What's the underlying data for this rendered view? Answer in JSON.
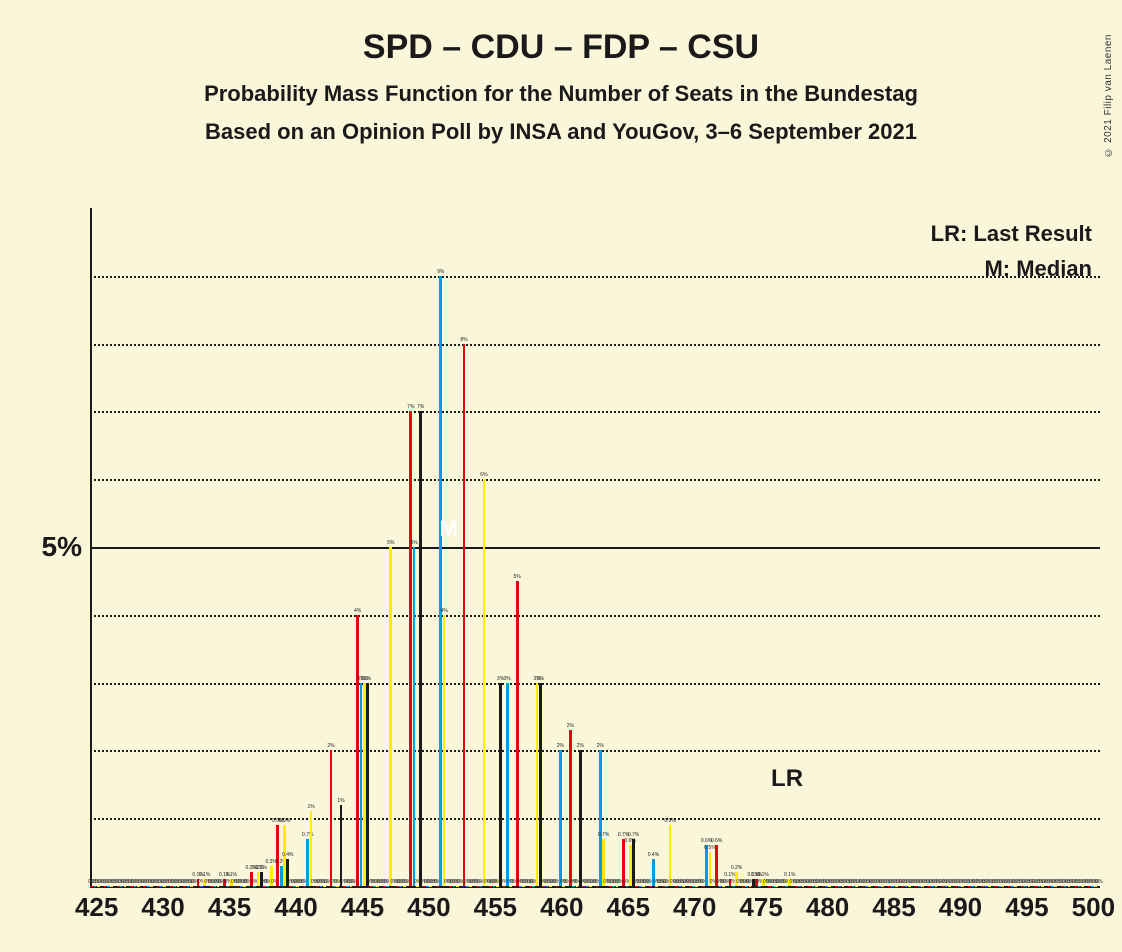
{
  "title": "SPD – CDU – FDP – CSU",
  "subtitle1": "Probability Mass Function for the Number of Seats in the Bundestag",
  "subtitle2": "Based on an Opinion Poll by INSA and YouGov, 3–6 September 2021",
  "attribution": "© 2021 Filip van Laenen",
  "legend": {
    "lr": "LR: Last Result",
    "m": "M: Median"
  },
  "chart": {
    "type": "bar",
    "background_color": "#faf6da",
    "text_color": "#1a1a1a",
    "grid_color": "#1a1a1a",
    "title_fontsize": 34,
    "subtitle_fontsize": 22,
    "axis_label_fontsize": 28,
    "x_tick_fontsize": 26,
    "bar_label_fontsize": 5,
    "y_axis": {
      "ymax_percent": 10,
      "major_tick": {
        "value": 5,
        "label": "5%"
      },
      "minor_grid_step": 1,
      "minor_grid_style": "dotted",
      "major_grid_style": "solid"
    },
    "x_axis": {
      "min": 425,
      "max": 500,
      "label_step": 5,
      "labels": [
        "425",
        "430",
        "435",
        "440",
        "445",
        "450",
        "455",
        "460",
        "465",
        "470",
        "475",
        "480",
        "485",
        "490",
        "495",
        "500"
      ]
    },
    "series_colors": {
      "red": "#e30613",
      "blue": "#009ee0",
      "yellow": "#ffed00",
      "black": "#1a1a1a"
    },
    "series_order": [
      "red",
      "blue",
      "yellow",
      "black"
    ],
    "categories": [
      425,
      426,
      427,
      428,
      429,
      430,
      431,
      432,
      433,
      434,
      435,
      436,
      437,
      438,
      439,
      440,
      441,
      442,
      443,
      444,
      445,
      446,
      447,
      448,
      449,
      450,
      451,
      452,
      453,
      454,
      455,
      456,
      457,
      458,
      459,
      460,
      461,
      462,
      463,
      464,
      465,
      466,
      467,
      468,
      469,
      470,
      471,
      472,
      473,
      474,
      475,
      476,
      477,
      478,
      479,
      480,
      481,
      482,
      483,
      484,
      485,
      486,
      487,
      488,
      489,
      490,
      491,
      492,
      493,
      494,
      495,
      496,
      497,
      498,
      499,
      500
    ],
    "data": {
      "425": {
        "red": 0,
        "blue": 0,
        "yellow": 0,
        "black": 0
      },
      "426": {
        "red": 0,
        "blue": 0,
        "yellow": 0,
        "black": 0
      },
      "427": {
        "red": 0,
        "blue": 0,
        "yellow": 0,
        "black": 0
      },
      "428": {
        "red": 0,
        "blue": 0,
        "yellow": 0,
        "black": 0
      },
      "429": {
        "red": 0,
        "blue": 0,
        "yellow": 0,
        "black": 0
      },
      "430": {
        "red": 0,
        "blue": 0,
        "yellow": 0,
        "black": 0
      },
      "431": {
        "red": 0,
        "blue": 0,
        "yellow": 0,
        "black": 0
      },
      "432": {
        "red": 0,
        "blue": 0,
        "yellow": 0,
        "black": 0
      },
      "433": {
        "red": 0.1,
        "blue": 0,
        "yellow": 0.1,
        "black": 0
      },
      "434": {
        "red": 0,
        "blue": 0,
        "yellow": 0,
        "black": 0
      },
      "435": {
        "red": 0.1,
        "blue": 0,
        "yellow": 0.1,
        "black": 0
      },
      "436": {
        "red": 0,
        "blue": 0,
        "yellow": 0,
        "black": 0
      },
      "437": {
        "red": 0.2,
        "blue": 0,
        "yellow": 0.2,
        "black": 0.2
      },
      "438": {
        "red": 0,
        "blue": 0,
        "yellow": 0.3,
        "black": 0
      },
      "439": {
        "red": 0.9,
        "blue": 0.3,
        "yellow": 0.9,
        "black": 0.4
      },
      "440": {
        "red": 0,
        "blue": 0,
        "yellow": 0,
        "black": 0
      },
      "441": {
        "red": 0,
        "blue": 0.7,
        "yellow": 1.1,
        "black": 0
      },
      "442": {
        "red": 0,
        "blue": 0,
        "yellow": 0,
        "black": 0
      },
      "443": {
        "red": 2,
        "blue": 0,
        "yellow": 0,
        "black": 1.2
      },
      "444": {
        "red": 0,
        "blue": 0,
        "yellow": 0,
        "black": 0
      },
      "445": {
        "red": 4,
        "blue": 3,
        "yellow": 3,
        "black": 3
      },
      "446": {
        "red": 0,
        "blue": 0,
        "yellow": 0,
        "black": 0
      },
      "447": {
        "red": 0,
        "blue": 0,
        "yellow": 5,
        "black": 0
      },
      "448": {
        "red": 0,
        "blue": 0,
        "yellow": 0,
        "black": 0
      },
      "449": {
        "red": 7,
        "blue": 5,
        "yellow": 0,
        "black": 7
      },
      "450": {
        "red": 0,
        "blue": 0,
        "yellow": 0,
        "black": 0
      },
      "451": {
        "red": 0,
        "blue": 9,
        "yellow": 4,
        "black": 0
      },
      "452": {
        "red": 0,
        "blue": 0,
        "yellow": 0,
        "black": 0
      },
      "453": {
        "red": 8,
        "blue": 0,
        "yellow": 0,
        "black": 0
      },
      "454": {
        "red": 0,
        "blue": 0,
        "yellow": 6,
        "black": 0
      },
      "455": {
        "red": 0,
        "blue": 0,
        "yellow": 0,
        "black": 3
      },
      "456": {
        "red": 0,
        "blue": 3,
        "yellow": 0,
        "black": 0
      },
      "457": {
        "red": 4.5,
        "blue": 0,
        "yellow": 0,
        "black": 0
      },
      "458": {
        "red": 0,
        "blue": 0,
        "yellow": 3,
        "black": 3
      },
      "459": {
        "red": 0,
        "blue": 0,
        "yellow": 0,
        "black": 0
      },
      "460": {
        "red": 0,
        "blue": 2,
        "yellow": 0,
        "black": 0
      },
      "461": {
        "red": 2.3,
        "blue": 0,
        "yellow": 0,
        "black": 2
      },
      "462": {
        "red": 0,
        "blue": 0,
        "yellow": 0,
        "black": 0
      },
      "463": {
        "red": 0,
        "blue": 2,
        "yellow": 0.7,
        "black": 0
      },
      "464": {
        "red": 0,
        "blue": 0,
        "yellow": 0,
        "black": 0
      },
      "465": {
        "red": 0.7,
        "blue": 0,
        "yellow": 0.6,
        "black": 0.7
      },
      "466": {
        "red": 0,
        "blue": 0,
        "yellow": 0,
        "black": 0
      },
      "467": {
        "red": 0,
        "blue": 0.4,
        "yellow": 0,
        "black": 0
      },
      "468": {
        "red": 0,
        "blue": 0,
        "yellow": 0.9,
        "black": 0
      },
      "469": {
        "red": 0,
        "blue": 0,
        "yellow": 0,
        "black": 0
      },
      "470": {
        "red": 0,
        "blue": 0,
        "yellow": 0,
        "black": 0
      },
      "471": {
        "red": 0,
        "blue": 0.6,
        "yellow": 0.5,
        "black": 0
      },
      "472": {
        "red": 0.6,
        "blue": 0,
        "yellow": 0,
        "black": 0
      },
      "473": {
        "red": 0.1,
        "blue": 0,
        "yellow": 0.2,
        "black": 0
      },
      "474": {
        "red": 0,
        "blue": 0,
        "yellow": 0,
        "black": 0.1
      },
      "475": {
        "red": 0.1,
        "blue": 0,
        "yellow": 0.1,
        "black": 0
      },
      "476": {
        "red": 0,
        "blue": 0,
        "yellow": 0,
        "black": 0
      },
      "477": {
        "red": 0,
        "blue": 0,
        "yellow": 0.1,
        "black": 0
      },
      "478": {
        "red": 0,
        "blue": 0,
        "yellow": 0,
        "black": 0
      },
      "479": {
        "red": 0,
        "blue": 0,
        "yellow": 0,
        "black": 0
      },
      "480": {
        "red": 0,
        "blue": 0,
        "yellow": 0,
        "black": 0
      },
      "481": {
        "red": 0,
        "blue": 0,
        "yellow": 0,
        "black": 0
      },
      "482": {
        "red": 0,
        "blue": 0,
        "yellow": 0,
        "black": 0
      },
      "483": {
        "red": 0,
        "blue": 0,
        "yellow": 0,
        "black": 0
      },
      "484": {
        "red": 0,
        "blue": 0,
        "yellow": 0,
        "black": 0
      },
      "485": {
        "red": 0,
        "blue": 0,
        "yellow": 0,
        "black": 0
      },
      "486": {
        "red": 0,
        "blue": 0,
        "yellow": 0,
        "black": 0
      },
      "487": {
        "red": 0,
        "blue": 0,
        "yellow": 0,
        "black": 0
      },
      "488": {
        "red": 0,
        "blue": 0,
        "yellow": 0,
        "black": 0
      },
      "489": {
        "red": 0,
        "blue": 0,
        "yellow": 0,
        "black": 0
      },
      "490": {
        "red": 0,
        "blue": 0,
        "yellow": 0,
        "black": 0
      },
      "491": {
        "red": 0,
        "blue": 0,
        "yellow": 0,
        "black": 0
      },
      "492": {
        "red": 0,
        "blue": 0,
        "yellow": 0,
        "black": 0
      },
      "493": {
        "red": 0,
        "blue": 0,
        "yellow": 0,
        "black": 0
      },
      "494": {
        "red": 0,
        "blue": 0,
        "yellow": 0,
        "black": 0
      },
      "495": {
        "red": 0,
        "blue": 0,
        "yellow": 0,
        "black": 0
      },
      "496": {
        "red": 0,
        "blue": 0,
        "yellow": 0,
        "black": 0
      },
      "497": {
        "red": 0,
        "blue": 0,
        "yellow": 0,
        "black": 0
      },
      "498": {
        "red": 0,
        "blue": 0,
        "yellow": 0,
        "black": 0
      },
      "499": {
        "red": 0,
        "blue": 0,
        "yellow": 0,
        "black": 0
      },
      "500": {
        "red": 0,
        "blue": 0,
        "yellow": 0,
        "black": 0
      }
    },
    "markers": {
      "median": {
        "label": "M",
        "category": 451
      },
      "last_result": {
        "label": "LR",
        "category": 477
      }
    }
  }
}
